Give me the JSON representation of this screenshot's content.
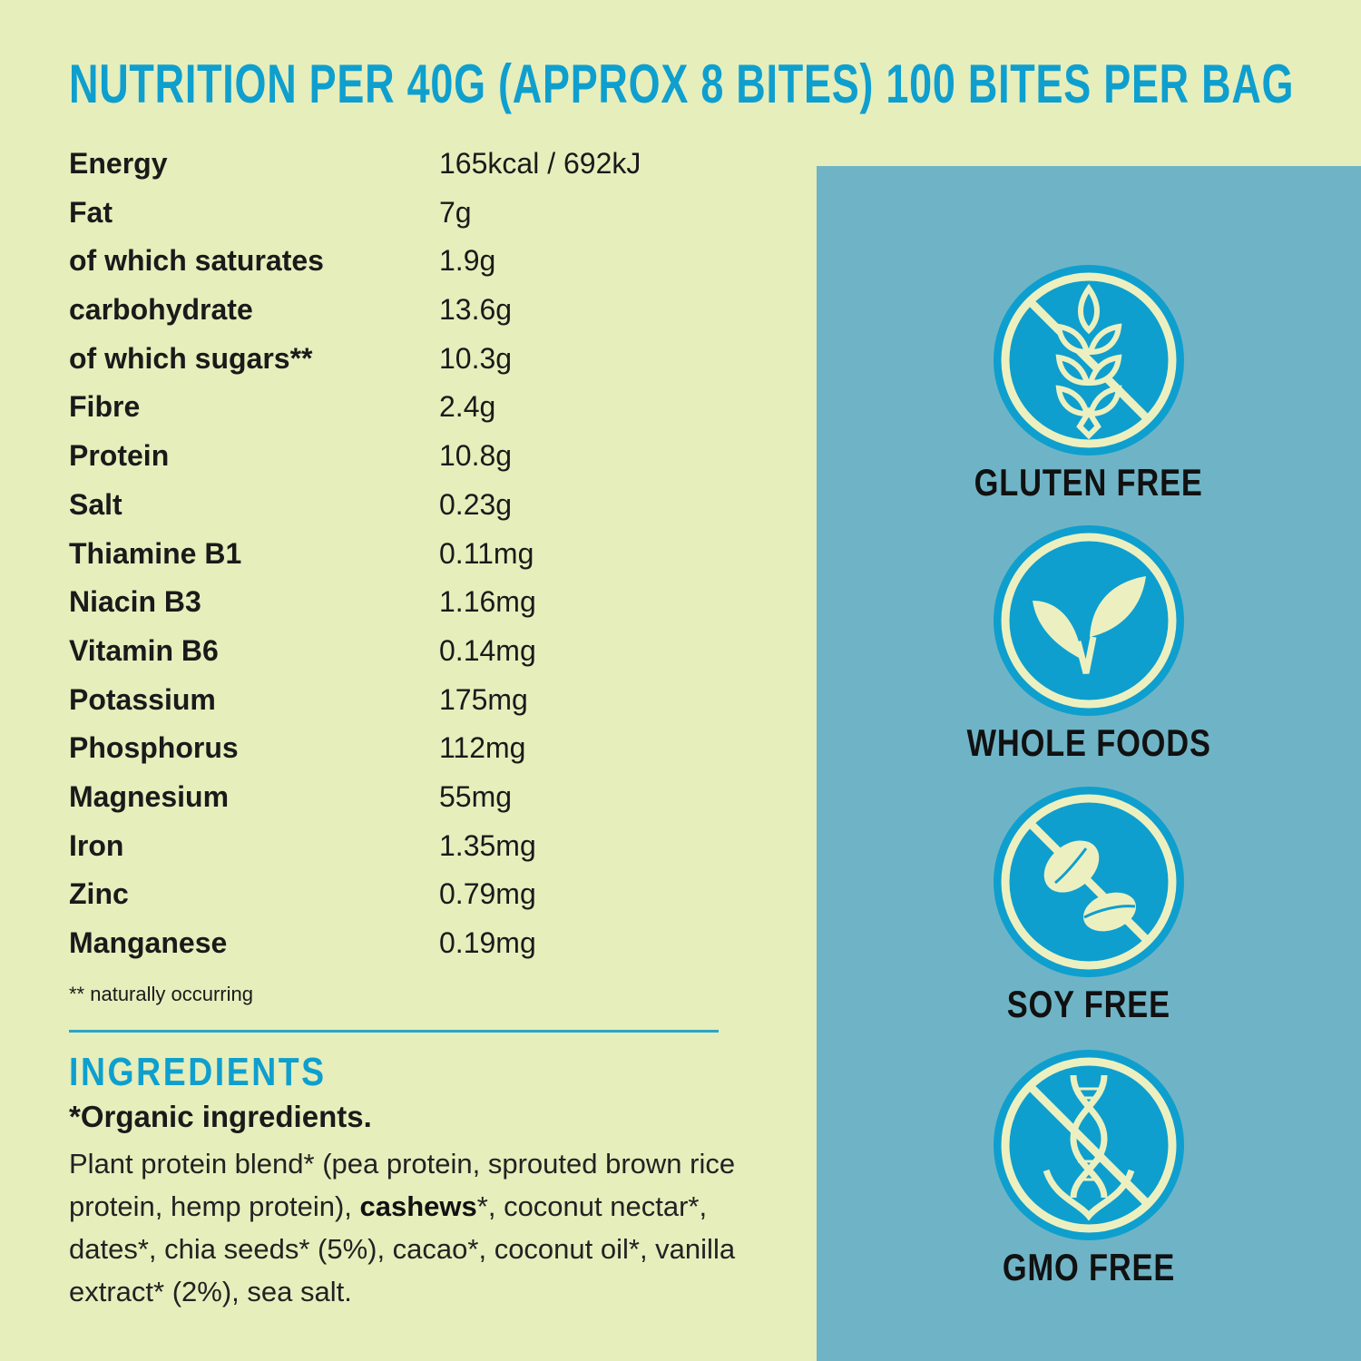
{
  "title": "NUTRITION PER 40G (APPROX 8 BITES) 100 BITES PER BAG",
  "nutrition": [
    {
      "label": "Energy",
      "value": "165kcal / 692kJ"
    },
    {
      "label": "Fat",
      "value": "7g"
    },
    {
      "label": "of which saturates",
      "value": "1.9g"
    },
    {
      "label": "carbohydrate",
      "value": "13.6g"
    },
    {
      "label": "of which sugars**",
      "value": "10.3g"
    },
    {
      "label": "Fibre",
      "value": "2.4g"
    },
    {
      "label": "Protein",
      "value": "10.8g"
    },
    {
      "label": "Salt",
      "value": "0.23g"
    },
    {
      "label": "Thiamine B1",
      "value": "0.11mg"
    },
    {
      "label": "Niacin B3",
      "value": "1.16mg"
    },
    {
      "label": "Vitamin B6",
      "value": "0.14mg"
    },
    {
      "label": "Potassium",
      "value": "175mg"
    },
    {
      "label": "Phosphorus",
      "value": "112mg"
    },
    {
      "label": "Magnesium",
      "value": "55mg"
    },
    {
      "label": "Iron",
      "value": "1.35mg"
    },
    {
      "label": "Zinc",
      "value": "0.79mg"
    },
    {
      "label": "Manganese",
      "value": "0.19mg"
    }
  ],
  "footnote": "** naturally occurring",
  "ingredients": {
    "heading": "INGREDIENTS",
    "subheading": "*Organic ingredients.",
    "text_before": "Plant protein blend* (pea protein, sprouted brown rice protein, hemp protein), ",
    "text_bold": "cashews",
    "text_after": "*, coconut nectar*, dates*, chia seeds* (5%), cacao*, coconut oil*, vanilla extract* (2%), sea salt."
  },
  "badges": [
    {
      "label": "GLUTEN FREE",
      "icon": "no-wheat-icon"
    },
    {
      "label": "WHOLE FOODS",
      "icon": "leaf-icon"
    },
    {
      "label": "SOY FREE",
      "icon": "no-soy-icon"
    },
    {
      "label": "GMO FREE",
      "icon": "no-gmo-icon"
    }
  ],
  "colors": {
    "background": "#e6eebc",
    "panel": "#6fb4c6",
    "accent": "#0e9fce",
    "cream": "#ecf0c0"
  }
}
